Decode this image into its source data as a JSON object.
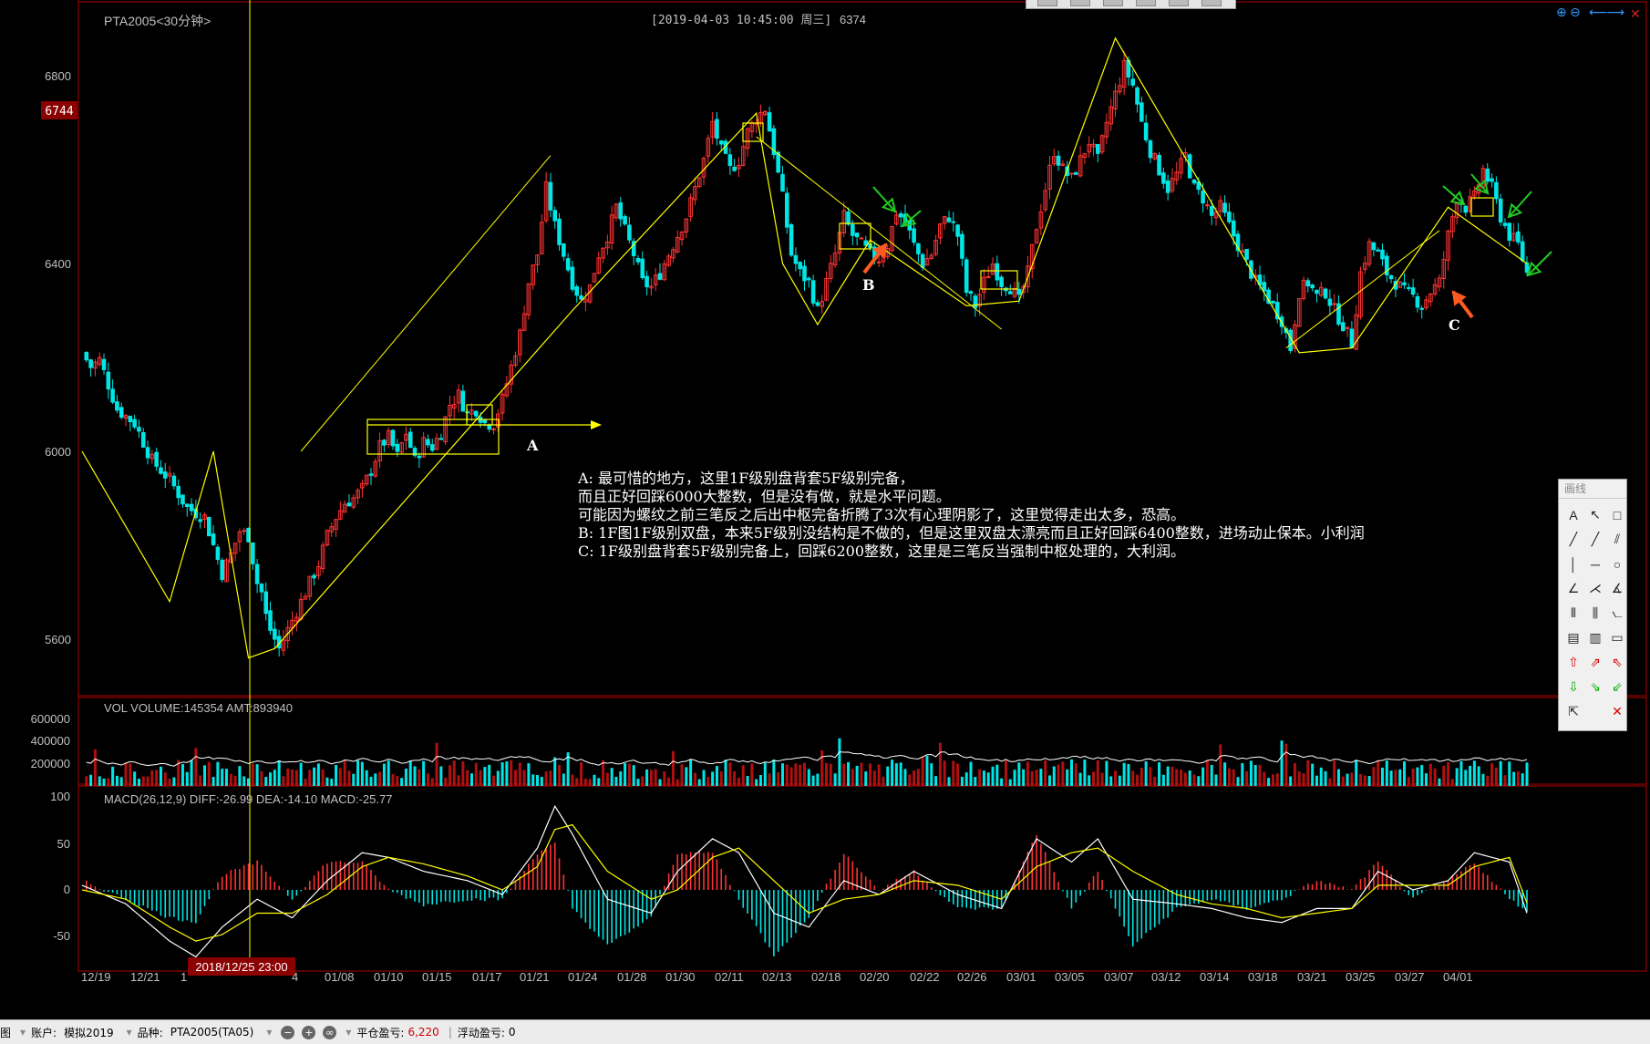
{
  "header": {
    "symbol": "PTA2005<30分钟>",
    "datetime": "[2019-04-03  10:45:00 周三]",
    "price": "6374"
  },
  "price_axis": {
    "ticks": [
      "6800",
      "6400",
      "6000",
      "5600"
    ],
    "current_badge": "6744"
  },
  "volume_panel": {
    "label": "VOL  VOLUME:145354 AMT:893940",
    "ticks": [
      "600000",
      "400000",
      "200000"
    ]
  },
  "macd_panel": {
    "label": "MACD(26,12,9)  DIFF:-26.99 DEA:-14.10 MACD:-25.77",
    "ticks": [
      "100",
      "50",
      "0",
      "-50"
    ]
  },
  "date_axis": {
    "labels": [
      "12/19",
      "12/21",
      "1",
      "2018/12/25 23:00",
      "4",
      "01/08",
      "01/10",
      "01/15",
      "01/17",
      "01/21",
      "01/24",
      "01/28",
      "01/30",
      "02/11",
      "02/13",
      "02/18",
      "02/20",
      "02/22",
      "02/26",
      "03/01",
      "03/05",
      "03/07",
      "03/12",
      "03/14",
      "03/18",
      "03/21",
      "03/25",
      "03/27",
      "04/01"
    ]
  },
  "annotation": {
    "lines": [
      "A: 最可惜的地方，这里1F级别盘背套5F级别完备，",
      "而且正好回踩6000大整数，但是没有做，就是水平问题。",
      "可能因为螺纹之前三笔反之后出中枢完备折腾了3次有心理阴影了，这里觉得走出太多，恐高。",
      "B: 1F图1F级别双盘，本来5F级别没结构是不做的，但是这里双盘太漂亮而且正好回踩6400整数，进场动止保本。小利润",
      "C: 1F级别盘背套5F级别完备上，回踩6200整数，这里是三笔反当强制中枢处理的，大利润。"
    ],
    "marks": [
      "A",
      "B",
      "C"
    ]
  },
  "toolbox": {
    "title": "画线",
    "tools": [
      "text-tool",
      "arrow-pointer-tool",
      "rectangle-tool",
      "line-segment-tool",
      "ray-tool",
      "parallel-lines-tool",
      "vertical-line-tool",
      "horizontal-line-tool",
      "ellipse-tool",
      "angle-tool",
      "fan-tool",
      "gann-tool",
      "cycle-lines-tool",
      "fib-lines-tool",
      "speed-tool",
      "text-box-tool",
      "label-tool",
      "ruler-tool",
      "up-arrow-tool",
      "up-right-arrow-tool",
      "up-left-arrow-tool",
      "down-arrow-tool",
      "down-right-arrow-tool",
      "down-left-arrow-tool",
      "select-tool",
      "blank-tool",
      "delete-tool"
    ],
    "glyphs": [
      "A",
      "↖",
      "□",
      "╱",
      "╱",
      "⫽",
      "│",
      "─",
      "○",
      "∠",
      "⋌",
      "∡",
      "⦀",
      "⫼",
      "⦦",
      "▤",
      "▥",
      "▭",
      "⇧",
      "⇗",
      "⇖",
      "⇩",
      "⇘",
      "⇙",
      "⇱",
      "",
      "✕"
    ]
  },
  "statusbar": {
    "left_fragment": "图",
    "account_label": "账户:",
    "account_value": "模拟2019",
    "product_label": "品种:",
    "product_value": "PTA2005(TA05)",
    "closed_pnl_label": "平仓盈亏:",
    "closed_pnl_value": "6,220",
    "float_pnl_label": "浮动盈亏:",
    "float_pnl_value": "0"
  },
  "colors": {
    "up": "#ff3333",
    "down": "#00e5e5",
    "stroke_line": "#ffff00",
    "white_line": "#ffffff",
    "border": "#b00000",
    "badge": "#8b0000"
  },
  "chart_data": {
    "type": "candlestick",
    "timeframe": "30分钟",
    "price_range": [
      5540,
      6920
    ],
    "close_path": [
      [
        0,
        6210
      ],
      [
        2,
        6180
      ],
      [
        4,
        6195
      ],
      [
        8,
        6090
      ],
      [
        12,
        6060
      ],
      [
        16,
        5980
      ],
      [
        20,
        5940
      ],
      [
        24,
        5880
      ],
      [
        28,
        5860
      ],
      [
        30,
        5800
      ],
      [
        32,
        5740
      ],
      [
        34,
        5780
      ],
      [
        36,
        5830
      ],
      [
        38,
        5820
      ],
      [
        40,
        5720
      ],
      [
        41,
        5700
      ],
      [
        42,
        5650
      ],
      [
        43,
        5620
      ],
      [
        44,
        5600
      ],
      [
        45,
        5580
      ],
      [
        46,
        5600
      ],
      [
        48,
        5640
      ],
      [
        50,
        5680
      ],
      [
        52,
        5720
      ],
      [
        54,
        5760
      ],
      [
        56,
        5820
      ],
      [
        58,
        5860
      ],
      [
        60,
        5890
      ],
      [
        62,
        5900
      ],
      [
        64,
        5920
      ],
      [
        66,
        5960
      ],
      [
        68,
        6010
      ],
      [
        70,
        6030
      ],
      [
        72,
        5990
      ],
      [
        74,
        6040
      ],
      [
        76,
        5980
      ],
      [
        78,
        6020
      ],
      [
        80,
        6010
      ],
      [
        82,
        6040
      ],
      [
        84,
        6100
      ],
      [
        86,
        6120
      ],
      [
        88,
        6080
      ],
      [
        90,
        6090
      ],
      [
        92,
        6060
      ],
      [
        94,
        6060
      ],
      [
        96,
        6110
      ],
      [
        98,
        6180
      ],
      [
        100,
        6250
      ],
      [
        102,
        6360
      ],
      [
        104,
        6420
      ],
      [
        106,
        6560
      ],
      [
        108,
        6480
      ],
      [
        110,
        6420
      ],
      [
        112,
        6360
      ],
      [
        114,
        6320
      ],
      [
        116,
        6350
      ],
      [
        118,
        6420
      ],
      [
        120,
        6460
      ],
      [
        122,
        6520
      ],
      [
        124,
        6470
      ],
      [
        126,
        6420
      ],
      [
        128,
        6360
      ],
      [
        130,
        6350
      ],
      [
        132,
        6380
      ],
      [
        134,
        6420
      ],
      [
        136,
        6460
      ],
      [
        138,
        6500
      ],
      [
        140,
        6560
      ],
      [
        142,
        6620
      ],
      [
        144,
        6700
      ],
      [
        146,
        6640
      ],
      [
        148,
        6600
      ],
      [
        150,
        6620
      ],
      [
        152,
        6680
      ],
      [
        154,
        6710
      ],
      [
        156,
        6730
      ],
      [
        158,
        6640
      ],
      [
        160,
        6540
      ],
      [
        162,
        6420
      ],
      [
        164,
        6380
      ],
      [
        166,
        6360
      ],
      [
        168,
        6300
      ],
      [
        170,
        6360
      ],
      [
        172,
        6420
      ],
      [
        174,
        6500
      ],
      [
        176,
        6460
      ],
      [
        178,
        6440
      ],
      [
        180,
        6420
      ],
      [
        182,
        6410
      ],
      [
        184,
        6440
      ],
      [
        186,
        6510
      ],
      [
        188,
        6490
      ],
      [
        190,
        6440
      ],
      [
        192,
        6400
      ],
      [
        194,
        6420
      ],
      [
        196,
        6480
      ],
      [
        198,
        6500
      ],
      [
        200,
        6460
      ],
      [
        202,
        6340
      ],
      [
        204,
        6310
      ],
      [
        206,
        6360
      ],
      [
        208,
        6400
      ],
      [
        210,
        6360
      ],
      [
        212,
        6350
      ],
      [
        214,
        6320
      ],
      [
        216,
        6380
      ],
      [
        218,
        6480
      ],
      [
        220,
        6560
      ],
      [
        222,
        6640
      ],
      [
        224,
        6600
      ],
      [
        226,
        6580
      ],
      [
        228,
        6620
      ],
      [
        230,
        6660
      ],
      [
        232,
        6620
      ],
      [
        234,
        6700
      ],
      [
        236,
        6760
      ],
      [
        238,
        6820
      ],
      [
        240,
        6780
      ],
      [
        242,
        6700
      ],
      [
        244,
        6640
      ],
      [
        246,
        6600
      ],
      [
        248,
        6560
      ],
      [
        250,
        6590
      ],
      [
        252,
        6630
      ],
      [
        254,
        6560
      ],
      [
        256,
        6540
      ],
      [
        258,
        6500
      ],
      [
        260,
        6520
      ],
      [
        262,
        6480
      ],
      [
        264,
        6440
      ],
      [
        266,
        6400
      ],
      [
        268,
        6360
      ],
      [
        270,
        6340
      ],
      [
        272,
        6310
      ],
      [
        274,
        6280
      ],
      [
        276,
        6220
      ],
      [
        278,
        6340
      ],
      [
        280,
        6360
      ],
      [
        282,
        6330
      ],
      [
        284,
        6340
      ],
      [
        286,
        6300
      ],
      [
        288,
        6270
      ],
      [
        290,
        6230
      ],
      [
        292,
        6380
      ],
      [
        294,
        6440
      ],
      [
        296,
        6420
      ],
      [
        298,
        6380
      ],
      [
        300,
        6360
      ],
      [
        302,
        6340
      ],
      [
        304,
        6330
      ],
      [
        306,
        6310
      ],
      [
        308,
        6340
      ],
      [
        310,
        6360
      ],
      [
        312,
        6460
      ],
      [
        314,
        6540
      ],
      [
        316,
        6520
      ],
      [
        318,
        6540
      ],
      [
        320,
        6600
      ],
      [
        322,
        6560
      ],
      [
        324,
        6500
      ],
      [
        326,
        6460
      ],
      [
        328,
        6440
      ],
      [
        330,
        6380
      ]
    ],
    "strokes": [
      {
        "name": "yellow-1",
        "points": [
          [
            0,
            6000
          ],
          [
            20,
            5680
          ],
          [
            30,
            6000
          ],
          [
            38,
            5560
          ],
          [
            44,
            5580
          ],
          [
            112,
            6300
          ],
          [
            154,
            6720
          ],
          [
            160,
            6400
          ],
          [
            168,
            6270
          ],
          [
            180,
            6450
          ],
          [
            202,
            6310
          ],
          [
            214,
            6320
          ],
          [
            236,
            6880
          ],
          [
            278,
            6210
          ],
          [
            290,
            6220
          ],
          [
            312,
            6520
          ],
          [
            330,
            6400
          ]
        ]
      }
    ],
    "volume_range": [
      0,
      750000
    ],
    "volume_ticks": [
      600000,
      400000,
      200000
    ],
    "macd_range": [
      -75,
      100
    ],
    "macd_ticks": [
      100,
      50,
      0,
      -50
    ],
    "macd_diff": [
      [
        0,
        5
      ],
      [
        10,
        -15
      ],
      [
        20,
        -55
      ],
      [
        26,
        -72
      ],
      [
        32,
        -40
      ],
      [
        40,
        -10
      ],
      [
        48,
        -30
      ],
      [
        56,
        10
      ],
      [
        64,
        40
      ],
      [
        70,
        35
      ],
      [
        78,
        20
      ],
      [
        88,
        10
      ],
      [
        96,
        -5
      ],
      [
        104,
        45
      ],
      [
        108,
        90
      ],
      [
        112,
        60
      ],
      [
        120,
        -10
      ],
      [
        130,
        -25
      ],
      [
        136,
        20
      ],
      [
        144,
        55
      ],
      [
        150,
        40
      ],
      [
        158,
        -25
      ],
      [
        166,
        -40
      ],
      [
        174,
        10
      ],
      [
        182,
        -5
      ],
      [
        190,
        20
      ],
      [
        200,
        -5
      ],
      [
        210,
        -20
      ],
      [
        218,
        55
      ],
      [
        226,
        30
      ],
      [
        232,
        55
      ],
      [
        240,
        -10
      ],
      [
        250,
        -15
      ],
      [
        258,
        -20
      ],
      [
        266,
        -30
      ],
      [
        274,
        -35
      ],
      [
        282,
        -20
      ],
      [
        290,
        -20
      ],
      [
        296,
        20
      ],
      [
        304,
        0
      ],
      [
        312,
        10
      ],
      [
        318,
        40
      ],
      [
        326,
        30
      ],
      [
        330,
        -25
      ]
    ],
    "macd_dea": [
      [
        0,
        0
      ],
      [
        10,
        -10
      ],
      [
        20,
        -40
      ],
      [
        26,
        -55
      ],
      [
        32,
        -48
      ],
      [
        40,
        -25
      ],
      [
        48,
        -25
      ],
      [
        56,
        -5
      ],
      [
        64,
        25
      ],
      [
        70,
        35
      ],
      [
        78,
        28
      ],
      [
        88,
        15
      ],
      [
        96,
        0
      ],
      [
        104,
        25
      ],
      [
        108,
        65
      ],
      [
        112,
        70
      ],
      [
        120,
        20
      ],
      [
        130,
        -10
      ],
      [
        136,
        0
      ],
      [
        144,
        35
      ],
      [
        150,
        45
      ],
      [
        158,
        10
      ],
      [
        166,
        -25
      ],
      [
        174,
        -10
      ],
      [
        182,
        -5
      ],
      [
        190,
        10
      ],
      [
        200,
        5
      ],
      [
        210,
        -10
      ],
      [
        218,
        25
      ],
      [
        226,
        40
      ],
      [
        232,
        45
      ],
      [
        240,
        20
      ],
      [
        250,
        -5
      ],
      [
        258,
        -15
      ],
      [
        266,
        -20
      ],
      [
        274,
        -30
      ],
      [
        282,
        -25
      ],
      [
        290,
        -20
      ],
      [
        296,
        5
      ],
      [
        304,
        5
      ],
      [
        312,
        5
      ],
      [
        318,
        25
      ],
      [
        326,
        35
      ],
      [
        330,
        -14
      ]
    ]
  }
}
